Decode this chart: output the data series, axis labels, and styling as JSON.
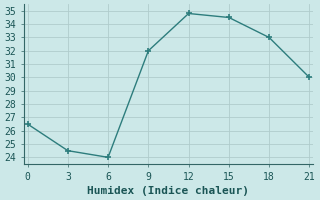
{
  "x": [
    0,
    3,
    6,
    9,
    12,
    15,
    18,
    21
  ],
  "y": [
    26.5,
    24.5,
    24.0,
    32.0,
    34.8,
    34.5,
    33.0,
    30.0
  ],
  "line_color": "#2d7d7d",
  "bg_color": "#cce8e8",
  "grid_major_color": "#b8d8d8",
  "grid_minor_color": "#dceaea",
  "xlabel": "Humidex (Indice chaleur)",
  "xlim": [
    -0.3,
    21.3
  ],
  "ylim": [
    23.5,
    35.5
  ],
  "yticks": [
    24,
    25,
    26,
    27,
    28,
    29,
    30,
    31,
    32,
    33,
    34,
    35
  ],
  "xticks": [
    0,
    3,
    6,
    9,
    12,
    15,
    18,
    21
  ],
  "xlabel_fontsize": 8,
  "tick_fontsize": 7,
  "linewidth": 1.0,
  "markersize": 4
}
